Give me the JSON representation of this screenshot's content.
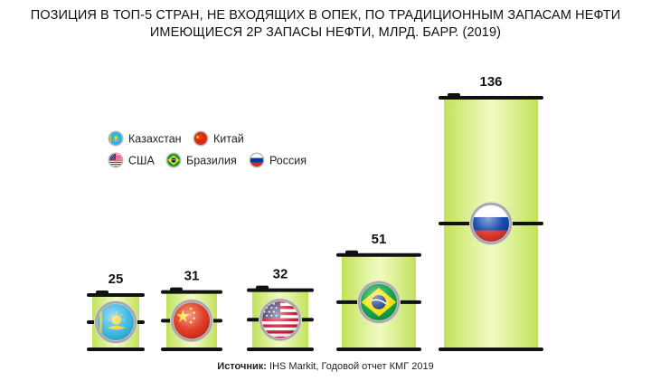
{
  "title_line1": "ПОЗИЦИЯ В ТОП-5 СТРАН, НЕ ВХОДЯЩИХ В ОПЕК, ПО ТРАДИЦИОННЫМ ЗАПАСАМ НЕФТИ",
  "title_line2": "ИМЕЮЩИЕСЯ 2P ЗАПАСЫ НЕФТИ, МЛРД. БАРР. (2019)",
  "source_label": "Источник:",
  "source_text": " IHS Markit, Годовой отчет КМГ 2019",
  "colors": {
    "barrel_bright": "#f1fbc4",
    "barrel_edge": "#c2e25a",
    "rim": "#111111"
  },
  "chart_data": {
    "type": "bar",
    "title": "ИМЕЮЩИЕСЯ 2P ЗАПАСЫ НЕФТИ, МЛРД. БАРР. (2019)",
    "categories": [
      "Казахстан",
      "Китай",
      "США",
      "Бразилия",
      "Россия"
    ],
    "values": [
      25,
      31,
      32,
      51,
      136
    ],
    "value_labels": [
      "25",
      "31",
      "32",
      "51",
      "136"
    ],
    "icons": [
      "kazakhstan-flag-icon",
      "china-flag-icon",
      "usa-flag-icon",
      "brazil-flag-icon",
      "russia-flag-icon"
    ],
    "legend": {
      "placement": "top-left",
      "rows": [
        [
          "Казахстан",
          "Китай"
        ],
        [
          "США",
          "Бразилия",
          "Россия"
        ]
      ]
    }
  }
}
